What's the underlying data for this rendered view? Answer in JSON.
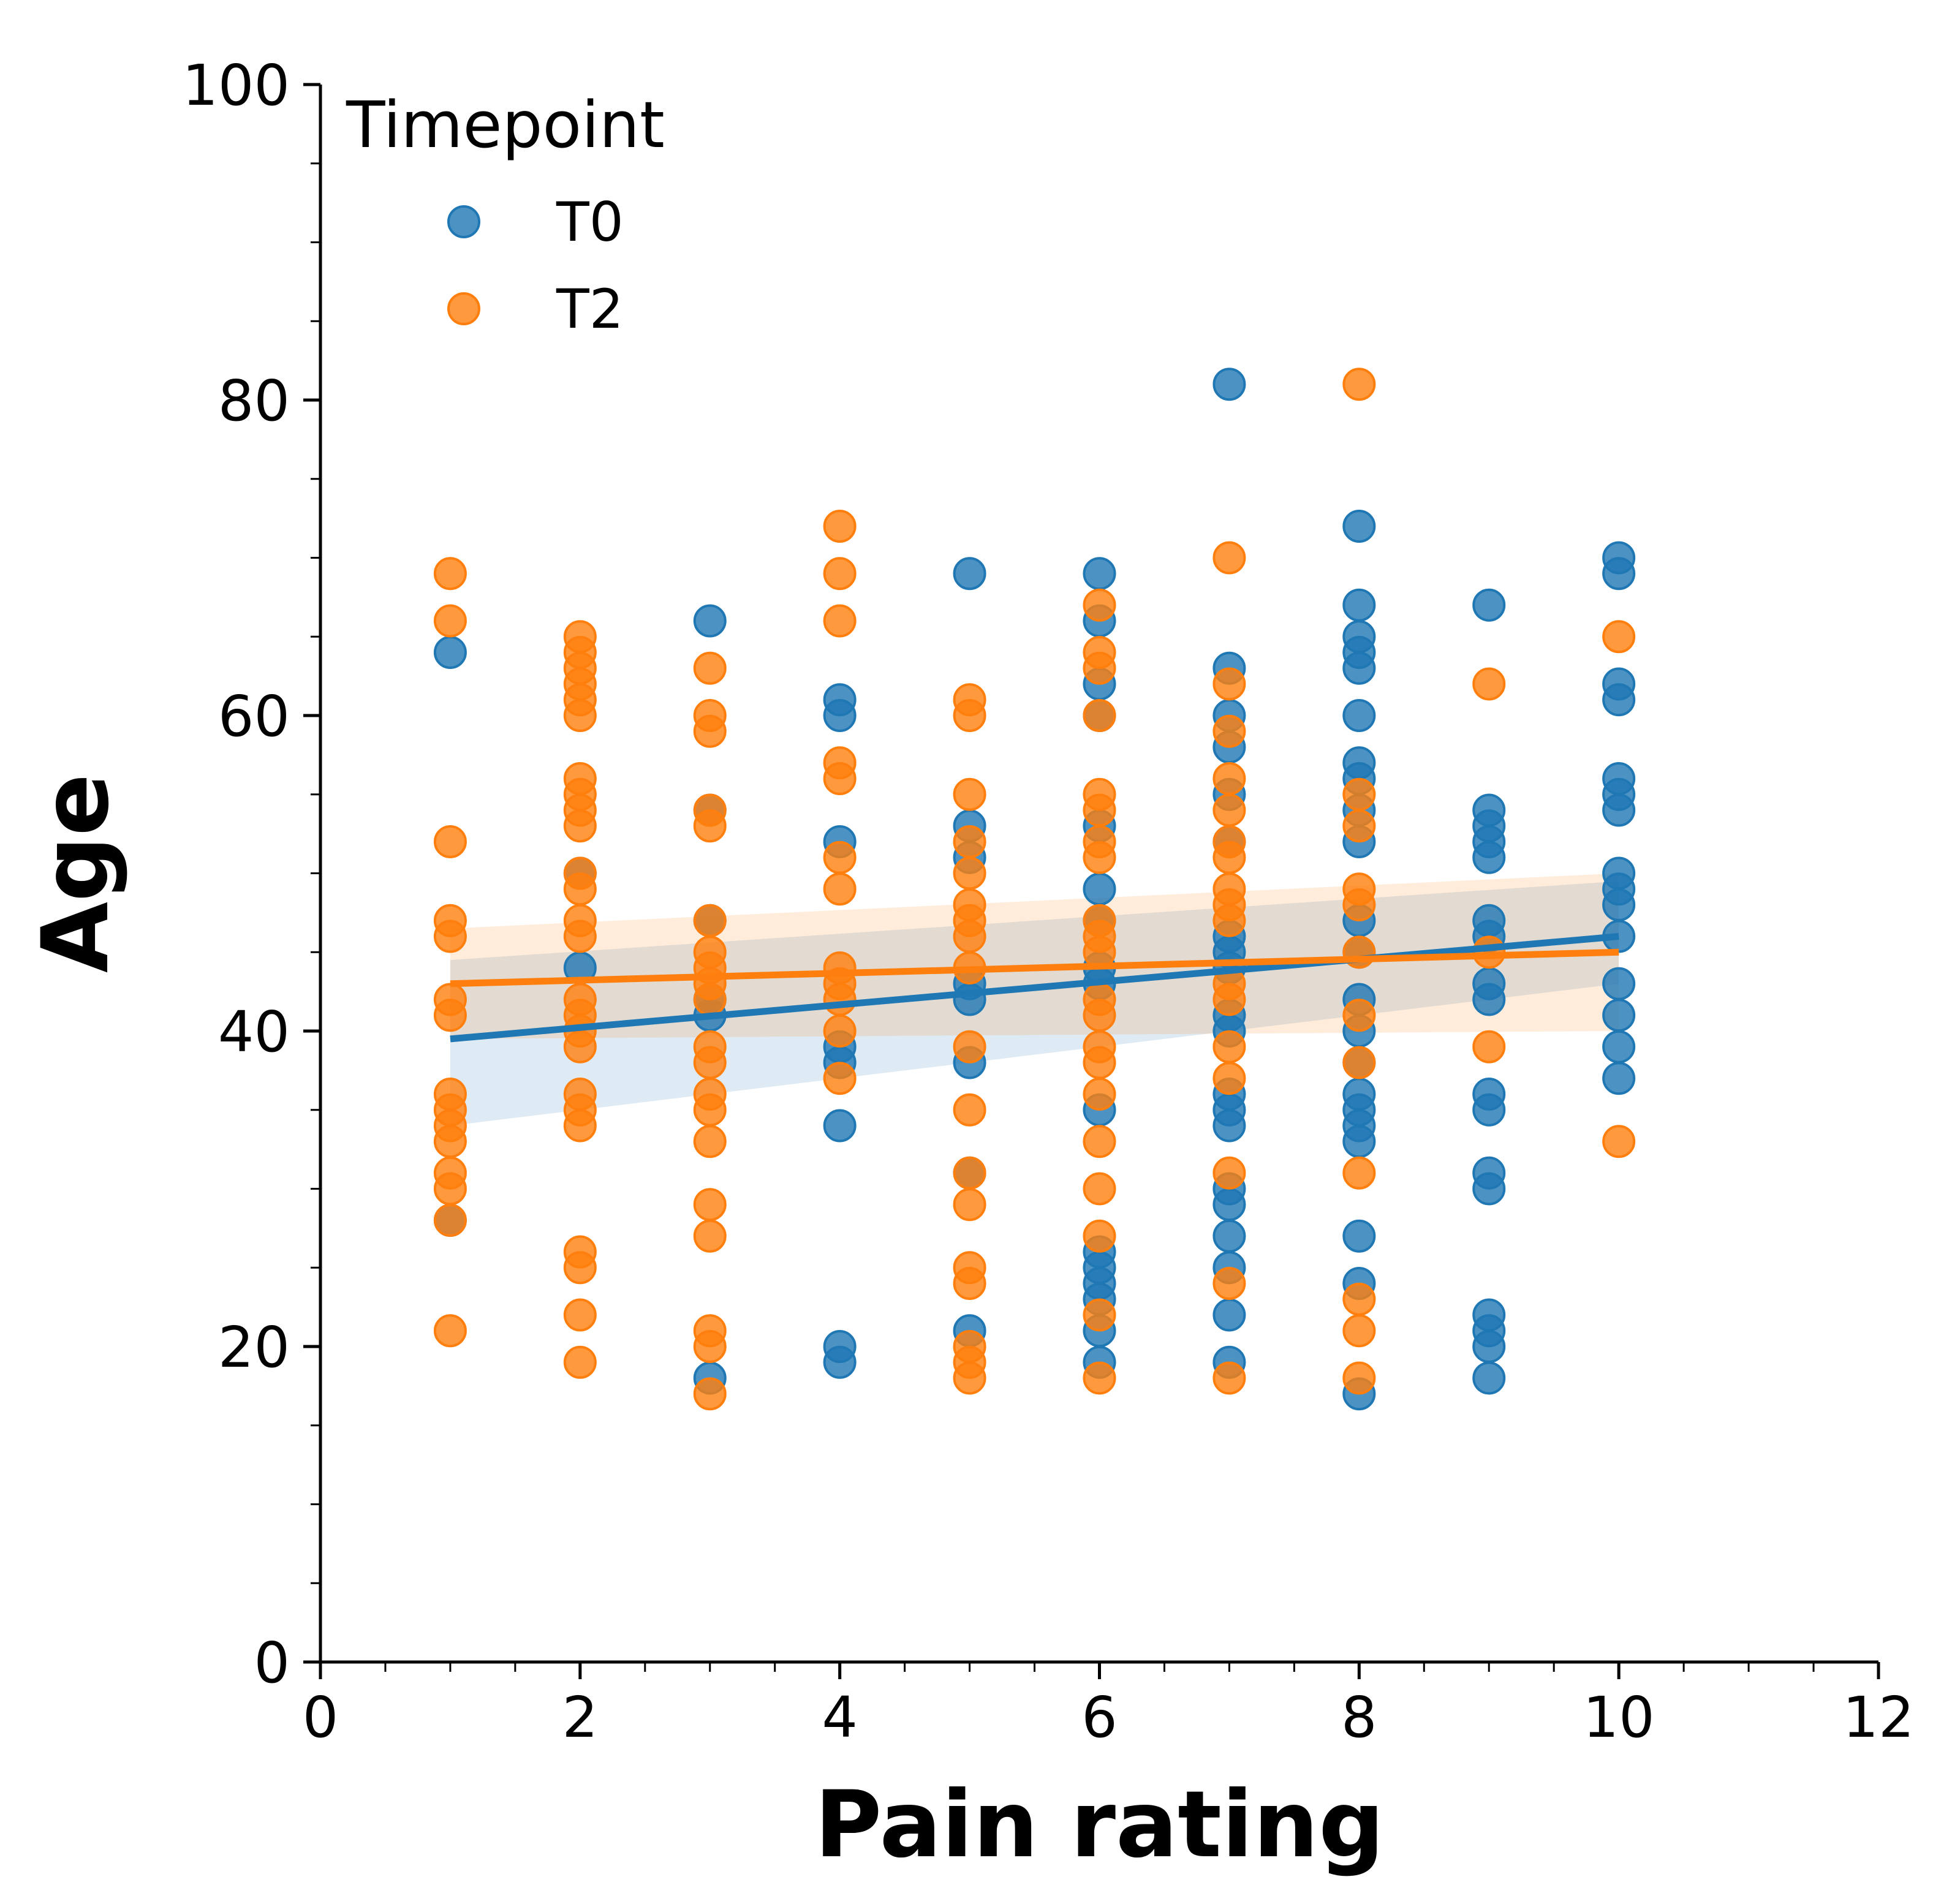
{
  "chart_data": {
    "type": "scatter",
    "xlabel": "Pain rating",
    "ylabel": "Age",
    "xlim": [
      0,
      12
    ],
    "ylim": [
      0,
      100
    ],
    "x_ticks": [
      0,
      2,
      4,
      6,
      8,
      10,
      12
    ],
    "y_ticks": [
      0,
      20,
      40,
      60,
      80,
      100
    ],
    "x_minor_step": 0.5,
    "y_minor_step": 5,
    "grid": false,
    "legend": {
      "title": "Timepoint",
      "placement": "top-left"
    },
    "series": [
      {
        "name": "T0",
        "color": "#1f77b4",
        "regression": {
          "x": [
            1,
            10
          ],
          "y": [
            39.5,
            46.0
          ],
          "ci_lower": [
            34.0,
            43.0
          ],
          "ci_upper": [
            44.5,
            49.5
          ]
        },
        "points": [
          [
            1,
            64
          ],
          [
            1,
            28
          ],
          [
            2,
            50
          ],
          [
            2,
            44
          ],
          [
            3,
            66
          ],
          [
            3,
            54
          ],
          [
            3,
            47
          ],
          [
            3,
            42
          ],
          [
            3,
            41
          ],
          [
            3,
            18
          ],
          [
            4,
            61
          ],
          [
            4,
            60
          ],
          [
            4,
            52
          ],
          [
            4,
            39
          ],
          [
            4,
            38
          ],
          [
            4,
            34
          ],
          [
            4,
            20
          ],
          [
            4,
            19
          ],
          [
            5,
            69
          ],
          [
            5,
            53
          ],
          [
            5,
            51
          ],
          [
            5,
            43
          ],
          [
            5,
            42
          ],
          [
            5,
            38
          ],
          [
            5,
            31
          ],
          [
            5,
            21
          ],
          [
            6,
            69
          ],
          [
            6,
            66
          ],
          [
            6,
            62
          ],
          [
            6,
            60
          ],
          [
            6,
            53
          ],
          [
            6,
            49
          ],
          [
            6,
            47
          ],
          [
            6,
            44
          ],
          [
            6,
            43
          ],
          [
            6,
            35
          ],
          [
            6,
            26
          ],
          [
            6,
            25
          ],
          [
            6,
            24
          ],
          [
            6,
            23
          ],
          [
            6,
            21
          ],
          [
            6,
            19
          ],
          [
            7,
            81
          ],
          [
            7,
            63
          ],
          [
            7,
            60
          ],
          [
            7,
            58
          ],
          [
            7,
            55
          ],
          [
            7,
            52
          ],
          [
            7,
            46
          ],
          [
            7,
            45
          ],
          [
            7,
            44
          ],
          [
            7,
            41
          ],
          [
            7,
            40
          ],
          [
            7,
            36
          ],
          [
            7,
            35
          ],
          [
            7,
            34
          ],
          [
            7,
            30
          ],
          [
            7,
            29
          ],
          [
            7,
            27
          ],
          [
            7,
            25
          ],
          [
            7,
            22
          ],
          [
            7,
            19
          ],
          [
            8,
            72
          ],
          [
            8,
            67
          ],
          [
            8,
            65
          ],
          [
            8,
            64
          ],
          [
            8,
            63
          ],
          [
            8,
            60
          ],
          [
            8,
            57
          ],
          [
            8,
            56
          ],
          [
            8,
            54
          ],
          [
            8,
            52
          ],
          [
            8,
            47
          ],
          [
            8,
            45
          ],
          [
            8,
            42
          ],
          [
            8,
            40
          ],
          [
            8,
            38
          ],
          [
            8,
            36
          ],
          [
            8,
            35
          ],
          [
            8,
            34
          ],
          [
            8,
            33
          ],
          [
            8,
            27
          ],
          [
            8,
            24
          ],
          [
            8,
            17
          ],
          [
            9,
            67
          ],
          [
            9,
            54
          ],
          [
            9,
            53
          ],
          [
            9,
            52
          ],
          [
            9,
            51
          ],
          [
            9,
            47
          ],
          [
            9,
            46
          ],
          [
            9,
            43
          ],
          [
            9,
            42
          ],
          [
            9,
            36
          ],
          [
            9,
            35
          ],
          [
            9,
            31
          ],
          [
            9,
            30
          ],
          [
            9,
            22
          ],
          [
            9,
            21
          ],
          [
            9,
            20
          ],
          [
            9,
            18
          ],
          [
            10,
            70
          ],
          [
            10,
            69
          ],
          [
            10,
            62
          ],
          [
            10,
            61
          ],
          [
            10,
            56
          ],
          [
            10,
            55
          ],
          [
            10,
            54
          ],
          [
            10,
            50
          ],
          [
            10,
            49
          ],
          [
            10,
            48
          ],
          [
            10,
            46
          ],
          [
            10,
            43
          ],
          [
            10,
            41
          ],
          [
            10,
            39
          ],
          [
            10,
            37
          ]
        ]
      },
      {
        "name": "T2",
        "color": "#ff7f0e",
        "regression": {
          "x": [
            1,
            10
          ],
          "y": [
            43.0,
            45.0
          ],
          "ci_lower": [
            39.5,
            40.0
          ],
          "ci_upper": [
            46.5,
            50.0
          ]
        },
        "points": [
          [
            1,
            69
          ],
          [
            1,
            66
          ],
          [
            1,
            52
          ],
          [
            1,
            47
          ],
          [
            1,
            46
          ],
          [
            1,
            42
          ],
          [
            1,
            41
          ],
          [
            1,
            36
          ],
          [
            1,
            35
          ],
          [
            1,
            34
          ],
          [
            1,
            33
          ],
          [
            1,
            31
          ],
          [
            1,
            30
          ],
          [
            1,
            28
          ],
          [
            1,
            21
          ],
          [
            2,
            65
          ],
          [
            2,
            64
          ],
          [
            2,
            63
          ],
          [
            2,
            62
          ],
          [
            2,
            61
          ],
          [
            2,
            60
          ],
          [
            2,
            56
          ],
          [
            2,
            55
          ],
          [
            2,
            54
          ],
          [
            2,
            53
          ],
          [
            2,
            50
          ],
          [
            2,
            49
          ],
          [
            2,
            47
          ],
          [
            2,
            46
          ],
          [
            2,
            42
          ],
          [
            2,
            41
          ],
          [
            2,
            40
          ],
          [
            2,
            39
          ],
          [
            2,
            36
          ],
          [
            2,
            35
          ],
          [
            2,
            34
          ],
          [
            2,
            26
          ],
          [
            2,
            25
          ],
          [
            2,
            22
          ],
          [
            2,
            19
          ],
          [
            3,
            63
          ],
          [
            3,
            60
          ],
          [
            3,
            59
          ],
          [
            3,
            54
          ],
          [
            3,
            53
          ],
          [
            3,
            47
          ],
          [
            3,
            45
          ],
          [
            3,
            44
          ],
          [
            3,
            43
          ],
          [
            3,
            42
          ],
          [
            3,
            39
          ],
          [
            3,
            38
          ],
          [
            3,
            36
          ],
          [
            3,
            35
          ],
          [
            3,
            33
          ],
          [
            3,
            29
          ],
          [
            3,
            27
          ],
          [
            3,
            21
          ],
          [
            3,
            20
          ],
          [
            3,
            17
          ],
          [
            4,
            72
          ],
          [
            4,
            69
          ],
          [
            4,
            66
          ],
          [
            4,
            57
          ],
          [
            4,
            56
          ],
          [
            4,
            51
          ],
          [
            4,
            49
          ],
          [
            4,
            44
          ],
          [
            4,
            43
          ],
          [
            4,
            42
          ],
          [
            4,
            40
          ],
          [
            4,
            37
          ],
          [
            5,
            61
          ],
          [
            5,
            60
          ],
          [
            5,
            55
          ],
          [
            5,
            52
          ],
          [
            5,
            50
          ],
          [
            5,
            48
          ],
          [
            5,
            47
          ],
          [
            5,
            46
          ],
          [
            5,
            44
          ],
          [
            5,
            39
          ],
          [
            5,
            35
          ],
          [
            5,
            31
          ],
          [
            5,
            29
          ],
          [
            5,
            25
          ],
          [
            5,
            24
          ],
          [
            5,
            20
          ],
          [
            5,
            19
          ],
          [
            5,
            18
          ],
          [
            6,
            67
          ],
          [
            6,
            64
          ],
          [
            6,
            63
          ],
          [
            6,
            60
          ],
          [
            6,
            55
          ],
          [
            6,
            54
          ],
          [
            6,
            52
          ],
          [
            6,
            51
          ],
          [
            6,
            47
          ],
          [
            6,
            46
          ],
          [
            6,
            45
          ],
          [
            6,
            42
          ],
          [
            6,
            41
          ],
          [
            6,
            39
          ],
          [
            6,
            38
          ],
          [
            6,
            36
          ],
          [
            6,
            33
          ],
          [
            6,
            30
          ],
          [
            6,
            27
          ],
          [
            6,
            22
          ],
          [
            6,
            18
          ],
          [
            7,
            70
          ],
          [
            7,
            62
          ],
          [
            7,
            59
          ],
          [
            7,
            56
          ],
          [
            7,
            54
          ],
          [
            7,
            52
          ],
          [
            7,
            51
          ],
          [
            7,
            49
          ],
          [
            7,
            48
          ],
          [
            7,
            47
          ],
          [
            7,
            43
          ],
          [
            7,
            42
          ],
          [
            7,
            39
          ],
          [
            7,
            37
          ],
          [
            7,
            31
          ],
          [
            7,
            24
          ],
          [
            7,
            18
          ],
          [
            8,
            81
          ],
          [
            8,
            55
          ],
          [
            8,
            53
          ],
          [
            8,
            49
          ],
          [
            8,
            48
          ],
          [
            8,
            45
          ],
          [
            8,
            41
          ],
          [
            8,
            38
          ],
          [
            8,
            31
          ],
          [
            8,
            23
          ],
          [
            8,
            21
          ],
          [
            8,
            18
          ],
          [
            9,
            62
          ],
          [
            9,
            45
          ],
          [
            9,
            39
          ],
          [
            10,
            65
          ],
          [
            10,
            33
          ]
        ]
      }
    ]
  }
}
